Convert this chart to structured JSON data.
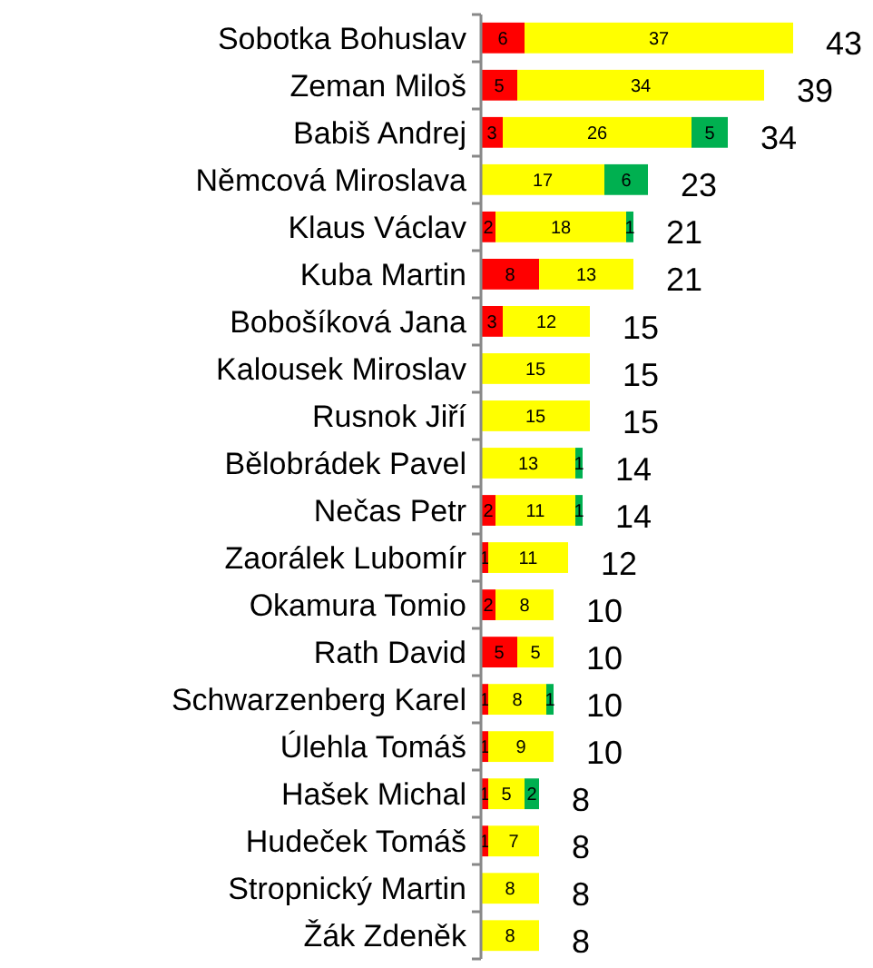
{
  "chart_data": {
    "type": "bar",
    "orientation": "horizontal",
    "stacked": true,
    "data_labels": true,
    "categories": [
      "Sobotka Bohuslav",
      "Zeman Miloš",
      "Babiš Andrej",
      "Němcová Miroslava",
      "Klaus Václav",
      "Kuba Martin",
      "Bobošíková Jana",
      "Kalousek Miroslav",
      "Rusnok Jiří",
      "Bělobrádek Pavel",
      "Nečas Petr",
      "Zaorálek Lubomír",
      "Okamura Tomio",
      "Rath David",
      "Schwarzenberg Karel",
      "Úlehla Tomáš",
      "Hašek Michal",
      "Hudeček Tomáš",
      "Stropnický Martin",
      "Žák Zdeněk"
    ],
    "series": [
      {
        "color": "#ff0000",
        "values": [
          6,
          5,
          3,
          null,
          2,
          8,
          3,
          null,
          null,
          null,
          2,
          1,
          2,
          5,
          1,
          1,
          1,
          1,
          null,
          null
        ]
      },
      {
        "color": "#ffff00",
        "values": [
          37,
          34,
          26,
          17,
          18,
          13,
          12,
          15,
          15,
          13,
          11,
          11,
          8,
          5,
          8,
          9,
          5,
          7,
          8,
          8
        ]
      },
      {
        "color": "#00b050",
        "values": [
          null,
          null,
          5,
          6,
          1,
          null,
          null,
          null,
          null,
          1,
          1,
          null,
          null,
          null,
          1,
          null,
          2,
          null,
          null,
          null
        ]
      }
    ],
    "totals": [
      "43",
      "39",
      "34",
      "23",
      "21",
      "21",
      "15",
      "15",
      "15",
      "14",
      "14",
      "12",
      "10",
      "10",
      "10",
      "10",
      "8",
      "8",
      "8",
      "8"
    ]
  }
}
